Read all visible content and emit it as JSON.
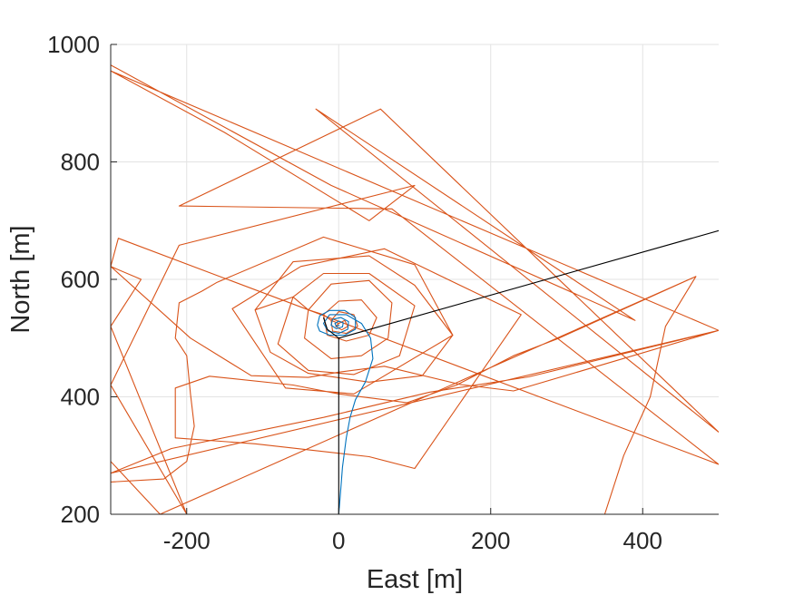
{
  "chart_data": {
    "type": "line",
    "title": "",
    "xlabel": "East [m]",
    "ylabel": "North [m]",
    "xlim": [
      -300,
      500
    ],
    "ylim": [
      200,
      1000
    ],
    "grid": true,
    "xticks": [
      {
        "value": -200,
        "label": "-200"
      },
      {
        "value": 0,
        "label": "0"
      },
      {
        "value": 200,
        "label": "200"
      },
      {
        "value": 400,
        "label": "400"
      }
    ],
    "yticks": [
      {
        "value": 200,
        "label": "200"
      },
      {
        "value": 400,
        "label": "400"
      },
      {
        "value": 600,
        "label": "600"
      },
      {
        "value": 800,
        "label": "800"
      },
      {
        "value": 1000,
        "label": "1000"
      }
    ],
    "series": [
      {
        "color": "#d95319",
        "points": [
          [
            -300,
            965
          ],
          [
            -10,
            760
          ],
          [
            -10,
            760
          ],
          [
            390,
            530
          ],
          [
            -30,
            890
          ],
          [
            500,
            340
          ],
          [
            55,
            890
          ],
          [
            -210,
            725
          ],
          [
            70,
            720
          ],
          [
            500,
            285
          ],
          [
            -290,
            670
          ],
          [
            -300,
            622
          ],
          [
            -195,
            500
          ],
          [
            -115,
            436
          ],
          [
            -40,
            433
          ],
          [
            0,
            442
          ],
          [
            60,
            452
          ],
          [
            160,
            421
          ],
          [
            230,
            410
          ],
          [
            500,
            513
          ],
          [
            -300,
            270
          ],
          [
            -220,
            312
          ],
          [
            -20,
            365
          ],
          [
            120,
            408
          ],
          [
            250,
            434
          ],
          [
            500,
            513
          ],
          [
            -300,
            955
          ],
          [
            -150,
            850
          ],
          [
            40,
            700
          ],
          [
            100,
            760
          ],
          [
            -210,
            658
          ],
          [
            -300,
            420
          ],
          [
            -200,
            200
          ],
          [
            -300,
            520
          ],
          [
            -260,
            600
          ],
          [
            -300,
            622
          ]
        ]
      },
      {
        "color": "#d95319",
        "points": [
          [
            -300,
            290
          ],
          [
            -235,
            200
          ],
          [
            470,
            605
          ],
          [
            290,
            500
          ],
          [
            230,
            470
          ],
          [
            155,
            420
          ],
          [
            90,
            390
          ],
          [
            60,
            395
          ],
          [
            0,
            405
          ],
          [
            -60,
            420
          ],
          [
            -170,
            435
          ],
          [
            -215,
            415
          ],
          [
            -215,
            330
          ],
          [
            -110,
            320
          ],
          [
            40,
            298
          ],
          [
            100,
            278
          ],
          [
            240,
            540
          ],
          [
            60,
            652
          ],
          [
            -50,
            622
          ],
          [
            -140,
            550
          ],
          [
            -70,
            415
          ],
          [
            20,
            405
          ],
          [
            150,
            505
          ],
          [
            100,
            625
          ],
          [
            -20,
            672
          ],
          [
            -160,
            595
          ],
          [
            -180,
            580
          ],
          [
            -210,
            560
          ],
          [
            -215,
            500
          ],
          [
            -200,
            470
          ],
          [
            -195,
            405
          ],
          [
            -190,
            350
          ],
          [
            -200,
            290
          ],
          [
            -230,
            260
          ],
          [
            -300,
            255
          ]
        ]
      },
      {
        "color": "#d95319",
        "points": [
          [
            470,
            605
          ],
          [
            430,
            520
          ],
          [
            410,
            400
          ],
          [
            375,
            300
          ],
          [
            350,
            200
          ]
        ]
      },
      {
        "color": "#d95319",
        "points": [
          [
            -110,
            548
          ],
          [
            -60,
            630
          ],
          [
            40,
            640
          ],
          [
            100,
            590
          ],
          [
            150,
            505
          ],
          [
            110,
            436
          ],
          [
            40,
            425
          ],
          [
            -40,
            440
          ],
          [
            -90,
            476
          ],
          [
            -110,
            548
          ],
          [
            -60,
            570
          ],
          [
            -20,
            610
          ],
          [
            40,
            610
          ],
          [
            100,
            555
          ],
          [
            80,
            470
          ],
          [
            20,
            438
          ],
          [
            -40,
            445
          ],
          [
            -80,
            490
          ],
          [
            -60,
            570
          ],
          [
            -40,
            548
          ],
          [
            -10,
            592
          ],
          [
            40,
            598
          ],
          [
            70,
            560
          ],
          [
            65,
            500
          ],
          [
            30,
            470
          ],
          [
            -10,
            465
          ],
          [
            -45,
            500
          ],
          [
            -40,
            548
          ],
          [
            -20,
            540
          ],
          [
            0,
            563
          ],
          [
            30,
            565
          ],
          [
            50,
            535
          ],
          [
            40,
            505
          ],
          [
            10,
            495
          ],
          [
            -15,
            505
          ],
          [
            -20,
            540
          ],
          [
            -10,
            530
          ],
          [
            0,
            545
          ],
          [
            20,
            540
          ],
          [
            25,
            520
          ],
          [
            10,
            508
          ],
          [
            -8,
            512
          ],
          [
            -10,
            530
          ],
          [
            0,
            525
          ],
          [
            8,
            530
          ],
          [
            12,
            520
          ],
          [
            4,
            514
          ],
          [
            -4,
            520
          ],
          [
            0,
            525
          ]
        ]
      },
      {
        "color": "#0072bd",
        "points": [
          [
            0,
            200
          ],
          [
            2,
            230
          ],
          [
            5,
            280
          ],
          [
            10,
            330
          ],
          [
            15,
            365
          ],
          [
            22,
            395
          ],
          [
            35,
            425
          ],
          [
            45,
            465
          ],
          [
            42,
            500
          ],
          [
            30,
            525
          ],
          [
            10,
            540
          ],
          [
            -12,
            540
          ],
          [
            -20,
            525
          ],
          [
            -14,
            512
          ],
          [
            0,
            508
          ],
          [
            12,
            515
          ],
          [
            13,
            528
          ],
          [
            3,
            535
          ],
          [
            -8,
            532
          ],
          [
            -10,
            522
          ],
          [
            -3,
            516
          ],
          [
            5,
            519
          ],
          [
            6,
            526
          ],
          [
            0,
            529
          ],
          [
            -5,
            525
          ],
          [
            -3,
            520
          ],
          [
            1,
            522
          ]
        ]
      },
      {
        "color": "#0072bd",
        "points": [
          [
            -28,
            522
          ],
          [
            -25,
            538
          ],
          [
            -12,
            547
          ],
          [
            8,
            547
          ],
          [
            22,
            535
          ],
          [
            22,
            515
          ],
          [
            8,
            505
          ],
          [
            -12,
            505
          ],
          [
            -25,
            512
          ],
          [
            -28,
            522
          ]
        ]
      },
      {
        "color": "#000000",
        "points": [
          [
            0,
            200
          ],
          [
            0,
            500
          ],
          [
            500,
            683
          ],
          [
            0,
            500
          ],
          [
            -15,
            515
          ],
          [
            -20,
            535
          ]
        ]
      }
    ]
  }
}
